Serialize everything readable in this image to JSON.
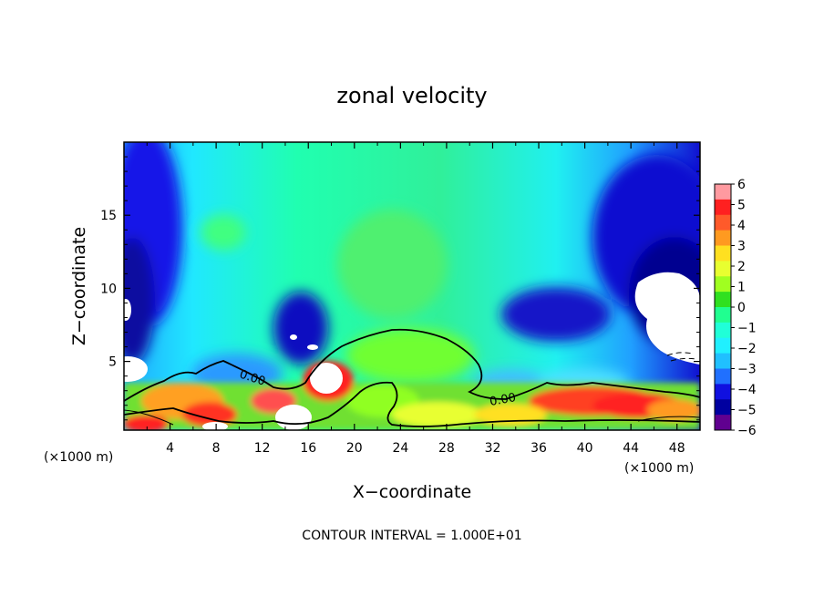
{
  "chart_data": {
    "type": "heatmap",
    "title": "zonal velocity",
    "xlabel": "X−coordinate",
    "ylabel": "Z−coordinate",
    "x_unit": "(×1000 m)",
    "y_unit": "(×1000 m)",
    "xlim": [
      0,
      50
    ],
    "ylim": [
      0.3,
      20
    ],
    "x_ticks": [
      "4",
      "8",
      "12",
      "16",
      "20",
      "24",
      "28",
      "32",
      "36",
      "40",
      "44",
      "48"
    ],
    "x_tick_values": [
      4,
      8,
      12,
      16,
      20,
      24,
      28,
      32,
      36,
      40,
      44,
      48
    ],
    "y_ticks": [
      "5",
      "10",
      "15"
    ],
    "y_tick_values": [
      5,
      10,
      15
    ],
    "colorbar": {
      "min": -6,
      "max": 6,
      "labels": [
        "6",
        "5",
        "4",
        "3",
        "2",
        "1",
        "0",
        "−1",
        "−2",
        "−3",
        "−4",
        "−5",
        "−6"
      ],
      "values": [
        6,
        5,
        4,
        3,
        2,
        1,
        0,
        -1,
        -2,
        -3,
        -4,
        -5,
        -6
      ],
      "colors": [
        "#ff9aa0",
        "#ff2020",
        "#ff5a2a",
        "#ff9a20",
        "#ffe020",
        "#e8ff30",
        "#a0ff20",
        "#30e020",
        "#20ff90",
        "#20ffd8",
        "#20f0ff",
        "#20c0ff",
        "#2070ff",
        "#1010e0",
        "#0000a0",
        "#600090"
      ]
    },
    "contour_labels": [
      "0.00",
      "0.00"
    ],
    "contour_interval_text": "CONTOUR INTERVAL = 1.000E+01"
  }
}
